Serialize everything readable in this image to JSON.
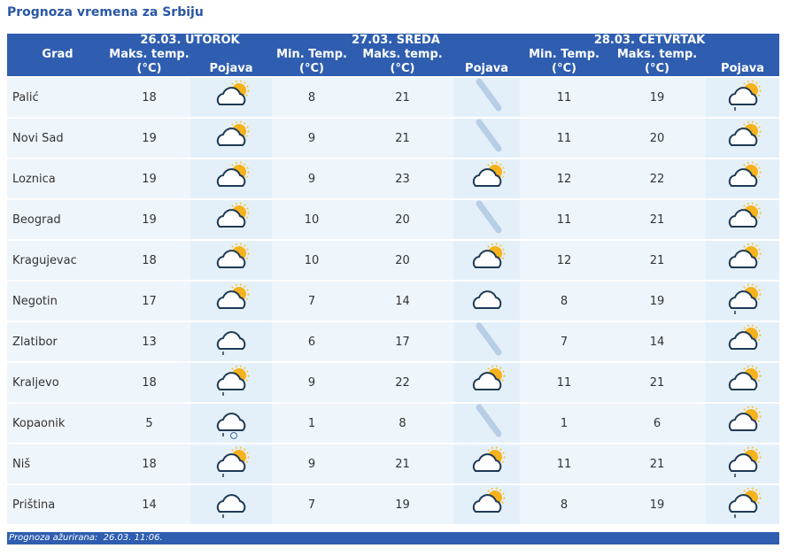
{
  "header": {
    "title": "Prognoza vremena za Srbiju"
  },
  "table": {
    "groups": [
      "26.03. UTOROK",
      "27.03. SREDA",
      "28.03. ČETVRTAK"
    ],
    "columns": [
      "Grad",
      "Maks. temp. (°C)",
      "Pojava",
      "Min. Temp. (°C)",
      "Maks. temp. (°C)",
      "Pojava",
      "Min. Temp. (°C)",
      "Maks. temp. (°C)",
      "Pojava"
    ],
    "rows": [
      [
        "Palić",
        18,
        8,
        21,
        11,
        19
      ],
      [
        "Novi Sad",
        19,
        9,
        21,
        11,
        20
      ],
      [
        "Loznica",
        19,
        9,
        23,
        12,
        22
      ],
      [
        "Beograd",
        19,
        10,
        20,
        11,
        21
      ],
      [
        "Kragujevac",
        18,
        10,
        20,
        12,
        21
      ],
      [
        "Negotin",
        17,
        7,
        14,
        8,
        19
      ],
      [
        "Zlatibor",
        13,
        6,
        17,
        7,
        14
      ],
      [
        "Kraljevo",
        18,
        9,
        22,
        11,
        21
      ],
      [
        "Kopaonik",
        5,
        1,
        8,
        1,
        6
      ],
      [
        "Niš",
        18,
        9,
        21,
        11,
        21
      ],
      [
        "Priština",
        14,
        7,
        19,
        8,
        19
      ]
    ]
  },
  "footer": {
    "updated": "Prognoza ažurirana:  26.03. 11:06."
  }
}
